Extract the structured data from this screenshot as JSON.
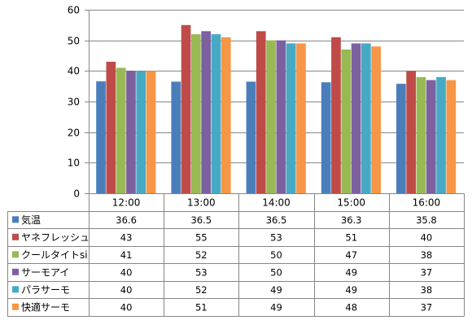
{
  "chart_data": {
    "type": "bar",
    "categories": [
      "12:00",
      "13:00",
      "14:00",
      "15:00",
      "16:00"
    ],
    "ylim": [
      0,
      60
    ],
    "yticks": [
      0,
      10,
      20,
      30,
      40,
      50,
      60
    ],
    "grid": true,
    "legend": "data-table",
    "series": [
      {
        "name": "気温",
        "color": "#4a7ebb",
        "values": [
          36.6,
          36.5,
          36.5,
          36.3,
          35.8
        ],
        "labels": [
          "36.6",
          "36.5",
          "36.5",
          "36.3",
          "35.8"
        ]
      },
      {
        "name": "ヤネフレッシュ",
        "color": "#be4b48",
        "values": [
          43,
          55,
          53,
          51,
          40
        ],
        "labels": [
          "43",
          "55",
          "53",
          "51",
          "40"
        ]
      },
      {
        "name": "クールタイトsi",
        "color": "#98b954",
        "values": [
          41,
          52,
          50,
          47,
          38
        ],
        "labels": [
          "41",
          "52",
          "50",
          "47",
          "38"
        ]
      },
      {
        "name": "サーモアイ",
        "color": "#7d60a0",
        "values": [
          40,
          53,
          50,
          49,
          37
        ],
        "labels": [
          "40",
          "53",
          "50",
          "49",
          "37"
        ]
      },
      {
        "name": "パラサーモ",
        "color": "#46aac5",
        "values": [
          40,
          52,
          49,
          49,
          38
        ],
        "labels": [
          "40",
          "52",
          "49",
          "49",
          "38"
        ]
      },
      {
        "name": "快適サーモ",
        "color": "#f79646",
        "values": [
          40,
          51,
          49,
          48,
          37
        ],
        "labels": [
          "40",
          "51",
          "49",
          "48",
          "37"
        ]
      }
    ]
  }
}
